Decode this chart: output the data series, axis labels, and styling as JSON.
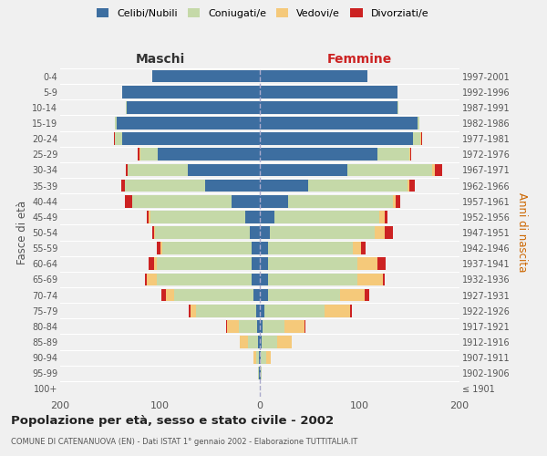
{
  "age_groups": [
    "100+",
    "95-99",
    "90-94",
    "85-89",
    "80-84",
    "75-79",
    "70-74",
    "65-69",
    "60-64",
    "55-59",
    "50-54",
    "45-49",
    "40-44",
    "35-39",
    "30-34",
    "25-29",
    "20-24",
    "15-19",
    "10-14",
    "5-9",
    "0-4"
  ],
  "birth_years": [
    "≤ 1901",
    "1902-1906",
    "1907-1911",
    "1912-1916",
    "1917-1921",
    "1922-1926",
    "1927-1931",
    "1932-1936",
    "1937-1941",
    "1942-1946",
    "1947-1951",
    "1952-1956",
    "1957-1961",
    "1962-1966",
    "1967-1971",
    "1972-1976",
    "1977-1981",
    "1982-1986",
    "1987-1991",
    "1992-1996",
    "1997-2001"
  ],
  "male_celibe": [
    0,
    1,
    1,
    2,
    3,
    4,
    6,
    8,
    8,
    8,
    10,
    15,
    28,
    55,
    72,
    102,
    138,
    143,
    133,
    138,
    108
  ],
  "male_coniugato": [
    0,
    1,
    3,
    10,
    18,
    60,
    80,
    95,
    95,
    90,
    95,
    95,
    100,
    80,
    60,
    18,
    7,
    2,
    1,
    0,
    0
  ],
  "male_vedovo": [
    0,
    0,
    2,
    8,
    12,
    5,
    8,
    10,
    3,
    2,
    1,
    1,
    0,
    0,
    0,
    1,
    0,
    0,
    0,
    0,
    0
  ],
  "male_divorziato": [
    0,
    0,
    0,
    0,
    1,
    2,
    5,
    2,
    5,
    3,
    2,
    2,
    7,
    4,
    2,
    1,
    1,
    0,
    0,
    0,
    0
  ],
  "female_nubile": [
    0,
    1,
    1,
    2,
    3,
    5,
    8,
    8,
    8,
    8,
    10,
    15,
    28,
    48,
    88,
    118,
    153,
    158,
    138,
    138,
    108
  ],
  "female_coniugata": [
    0,
    1,
    5,
    15,
    22,
    60,
    72,
    90,
    90,
    85,
    105,
    105,
    105,
    100,
    85,
    32,
    8,
    2,
    1,
    0,
    0
  ],
  "female_vedova": [
    0,
    0,
    5,
    15,
    20,
    25,
    25,
    25,
    20,
    8,
    10,
    5,
    3,
    2,
    2,
    1,
    1,
    0,
    0,
    0,
    0
  ],
  "female_divorziata": [
    0,
    0,
    0,
    0,
    1,
    2,
    5,
    2,
    8,
    5,
    8,
    3,
    5,
    5,
    8,
    1,
    1,
    0,
    0,
    0,
    0
  ],
  "color_celibe": "#3d6ea0",
  "color_coniugato": "#c5d9a8",
  "color_vedovo": "#f5c97a",
  "color_divorziato": "#cc2222",
  "legend_labels": [
    "Celibi/Nubili",
    "Coniugati/e",
    "Vedovi/e",
    "Divorziati/e"
  ],
  "title": "Popolazione per età, sesso e stato civile - 2002",
  "subtitle": "COMUNE DI CATENANUOVA (EN) - Dati ISTAT 1° gennaio 2002 - Elaborazione TUTTITALIA.IT",
  "label_maschi": "Maschi",
  "label_femmine": "Femmine",
  "ylabel_left": "Fasce di età",
  "ylabel_right": "Anni di nascita",
  "xlim": 200,
  "bg_color": "#f0f0f0"
}
